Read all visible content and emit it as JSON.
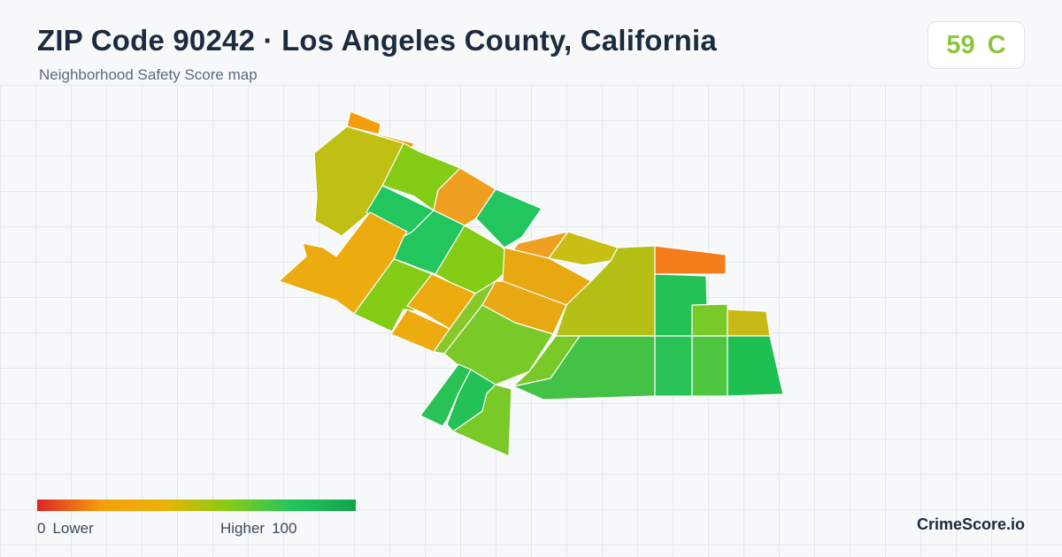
{
  "header": {
    "title": "ZIP Code 90242 · Los Angeles County, California",
    "subtitle": "Neighborhood Safety Score map"
  },
  "score_badge": {
    "score": "59",
    "grade": "C",
    "color": "#8cc63f"
  },
  "legend": {
    "min_value": "0",
    "min_label": "Lower",
    "max_label": "Higher",
    "max_value": "100",
    "gradient_colors": [
      "#dc2626",
      "#f59e0b",
      "#eab308",
      "#84cc16",
      "#22c55e",
      "#16a34a"
    ]
  },
  "branding": {
    "text": "CrimeScore.io"
  },
  "map": {
    "area_colors": [
      "#f59e0b",
      "#bfc013",
      "#84cc16",
      "#f0a020",
      "#22c55e",
      "#2fc45a",
      "#5cc93a",
      "#ecab0f",
      "#c8be14",
      "#e8a812",
      "#88c828",
      "#b5c016",
      "#f47c1a",
      "#24c156",
      "#79c928",
      "#c8b916",
      "#9ccb20",
      "#44c246",
      "#28c354",
      "#4ec640",
      "#1fc052",
      "#90c820",
      "#a8c41d"
    ]
  }
}
